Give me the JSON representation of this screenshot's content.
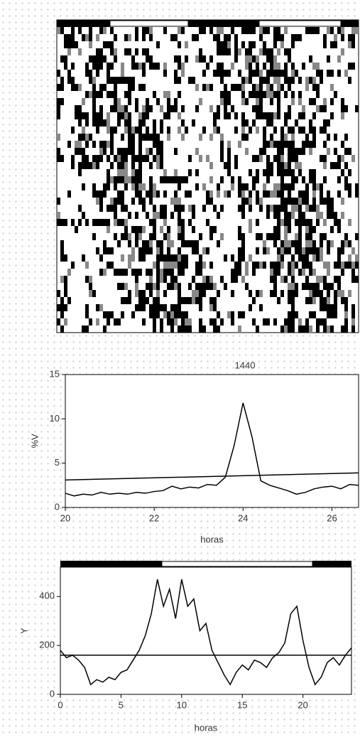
{
  "chart_data": [
    {
      "type": "line",
      "annotation": "1440",
      "ylabel": "%V",
      "xlabel": "horas",
      "xlim": [
        20,
        26.6
      ],
      "xticks": [
        20,
        22,
        24,
        26
      ],
      "ylim": [
        0,
        15
      ],
      "yticks": [
        0,
        5,
        10,
        15
      ],
      "series": [
        {
          "color": "#000",
          "x": [
            20,
            20.2,
            20.4,
            20.6,
            20.8,
            21,
            21.2,
            21.4,
            21.6,
            21.8,
            22,
            22.2,
            22.4,
            22.6,
            22.8,
            23,
            23.2,
            23.4,
            23.6,
            23.8,
            24,
            24.2,
            24.4,
            24.6,
            24.8,
            25,
            25.2,
            25.4,
            25.6,
            25.8,
            26,
            26.2,
            26.4,
            26.6
          ],
          "values": [
            1.6,
            1.3,
            1.5,
            1.4,
            1.7,
            1.5,
            1.6,
            1.5,
            1.7,
            1.6,
            1.8,
            1.9,
            2.4,
            2.1,
            2.3,
            2.2,
            2.6,
            2.5,
            3.4,
            7,
            11.8,
            8,
            3,
            2.5,
            2.2,
            1.9,
            1.5,
            1.7,
            2.1,
            2.3,
            2.4,
            2.1,
            2.6,
            2.5
          ]
        },
        {
          "color": "#000",
          "x": [
            20,
            26.6
          ],
          "values": [
            3.1,
            3.9
          ]
        }
      ]
    },
    {
      "type": "line",
      "ylabel": "Y",
      "xlabel": "horas",
      "xlim": [
        0,
        24
      ],
      "xticks": [
        0,
        5,
        10,
        15,
        20
      ],
      "ylim": [
        0,
        520
      ],
      "yticks": [
        0,
        200,
        400
      ],
      "series": [
        {
          "color": "#000",
          "x": [
            0,
            0.5,
            1,
            1.5,
            2,
            2.5,
            3,
            3.5,
            4,
            4.5,
            5,
            5.5,
            6,
            6.5,
            7,
            7.5,
            8,
            8.5,
            9,
            9.5,
            10,
            10.5,
            11,
            11.5,
            12,
            12.5,
            13,
            13.5,
            14,
            14.5,
            15,
            15.5,
            16,
            16.5,
            17,
            17.5,
            18,
            18.5,
            19,
            19.5,
            20,
            20.5,
            21,
            21.5,
            22,
            22.5,
            23,
            23.5,
            24
          ],
          "values": [
            180,
            150,
            160,
            140,
            110,
            40,
            60,
            50,
            70,
            60,
            90,
            100,
            140,
            180,
            240,
            330,
            470,
            360,
            430,
            310,
            470,
            360,
            390,
            260,
            290,
            180,
            130,
            80,
            40,
            90,
            120,
            100,
            140,
            130,
            110,
            150,
            170,
            210,
            330,
            360,
            220,
            110,
            40,
            70,
            130,
            150,
            120,
            160,
            190
          ]
        },
        {
          "color": "#000",
          "x": [
            0,
            24
          ],
          "values": [
            160,
            160
          ]
        }
      ]
    }
  ]
}
